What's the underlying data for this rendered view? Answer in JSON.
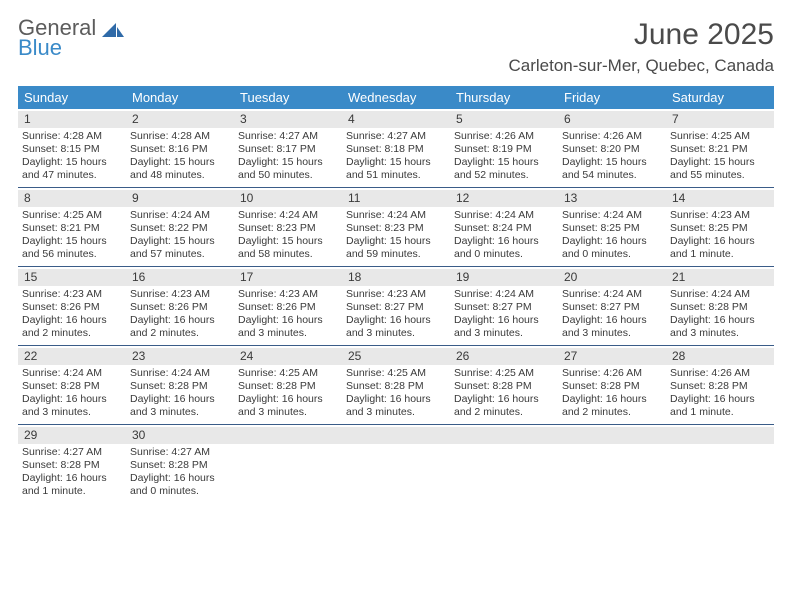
{
  "logo": {
    "word1": "General",
    "word2": "Blue"
  },
  "title": "June 2025",
  "location": "Carleton-sur-Mer, Quebec, Canada",
  "colors": {
    "header_bg": "#3a8ac8",
    "daynum_bg": "#e8e8e8",
    "rule": "#3a5c88"
  },
  "weekdays": [
    "Sunday",
    "Monday",
    "Tuesday",
    "Wednesday",
    "Thursday",
    "Friday",
    "Saturday"
  ],
  "weeks": [
    [
      {
        "n": 1,
        "sr": "4:28 AM",
        "ss": "8:15 PM",
        "dl": "15 hours and 47 minutes."
      },
      {
        "n": 2,
        "sr": "4:28 AM",
        "ss": "8:16 PM",
        "dl": "15 hours and 48 minutes."
      },
      {
        "n": 3,
        "sr": "4:27 AM",
        "ss": "8:17 PM",
        "dl": "15 hours and 50 minutes."
      },
      {
        "n": 4,
        "sr": "4:27 AM",
        "ss": "8:18 PM",
        "dl": "15 hours and 51 minutes."
      },
      {
        "n": 5,
        "sr": "4:26 AM",
        "ss": "8:19 PM",
        "dl": "15 hours and 52 minutes."
      },
      {
        "n": 6,
        "sr": "4:26 AM",
        "ss": "8:20 PM",
        "dl": "15 hours and 54 minutes."
      },
      {
        "n": 7,
        "sr": "4:25 AM",
        "ss": "8:21 PM",
        "dl": "15 hours and 55 minutes."
      }
    ],
    [
      {
        "n": 8,
        "sr": "4:25 AM",
        "ss": "8:21 PM",
        "dl": "15 hours and 56 minutes."
      },
      {
        "n": 9,
        "sr": "4:24 AM",
        "ss": "8:22 PM",
        "dl": "15 hours and 57 minutes."
      },
      {
        "n": 10,
        "sr": "4:24 AM",
        "ss": "8:23 PM",
        "dl": "15 hours and 58 minutes."
      },
      {
        "n": 11,
        "sr": "4:24 AM",
        "ss": "8:23 PM",
        "dl": "15 hours and 59 minutes."
      },
      {
        "n": 12,
        "sr": "4:24 AM",
        "ss": "8:24 PM",
        "dl": "16 hours and 0 minutes."
      },
      {
        "n": 13,
        "sr": "4:24 AM",
        "ss": "8:25 PM",
        "dl": "16 hours and 0 minutes."
      },
      {
        "n": 14,
        "sr": "4:23 AM",
        "ss": "8:25 PM",
        "dl": "16 hours and 1 minute."
      }
    ],
    [
      {
        "n": 15,
        "sr": "4:23 AM",
        "ss": "8:26 PM",
        "dl": "16 hours and 2 minutes."
      },
      {
        "n": 16,
        "sr": "4:23 AM",
        "ss": "8:26 PM",
        "dl": "16 hours and 2 minutes."
      },
      {
        "n": 17,
        "sr": "4:23 AM",
        "ss": "8:26 PM",
        "dl": "16 hours and 3 minutes."
      },
      {
        "n": 18,
        "sr": "4:23 AM",
        "ss": "8:27 PM",
        "dl": "16 hours and 3 minutes."
      },
      {
        "n": 19,
        "sr": "4:24 AM",
        "ss": "8:27 PM",
        "dl": "16 hours and 3 minutes."
      },
      {
        "n": 20,
        "sr": "4:24 AM",
        "ss": "8:27 PM",
        "dl": "16 hours and 3 minutes."
      },
      {
        "n": 21,
        "sr": "4:24 AM",
        "ss": "8:28 PM",
        "dl": "16 hours and 3 minutes."
      }
    ],
    [
      {
        "n": 22,
        "sr": "4:24 AM",
        "ss": "8:28 PM",
        "dl": "16 hours and 3 minutes."
      },
      {
        "n": 23,
        "sr": "4:24 AM",
        "ss": "8:28 PM",
        "dl": "16 hours and 3 minutes."
      },
      {
        "n": 24,
        "sr": "4:25 AM",
        "ss": "8:28 PM",
        "dl": "16 hours and 3 minutes."
      },
      {
        "n": 25,
        "sr": "4:25 AM",
        "ss": "8:28 PM",
        "dl": "16 hours and 3 minutes."
      },
      {
        "n": 26,
        "sr": "4:25 AM",
        "ss": "8:28 PM",
        "dl": "16 hours and 2 minutes."
      },
      {
        "n": 27,
        "sr": "4:26 AM",
        "ss": "8:28 PM",
        "dl": "16 hours and 2 minutes."
      },
      {
        "n": 28,
        "sr": "4:26 AM",
        "ss": "8:28 PM",
        "dl": "16 hours and 1 minute."
      }
    ],
    [
      {
        "n": 29,
        "sr": "4:27 AM",
        "ss": "8:28 PM",
        "dl": "16 hours and 1 minute."
      },
      {
        "n": 30,
        "sr": "4:27 AM",
        "ss": "8:28 PM",
        "dl": "16 hours and 0 minutes."
      },
      null,
      null,
      null,
      null,
      null
    ]
  ],
  "labels": {
    "sunrise": "Sunrise:",
    "sunset": "Sunset:",
    "daylight": "Daylight:"
  }
}
